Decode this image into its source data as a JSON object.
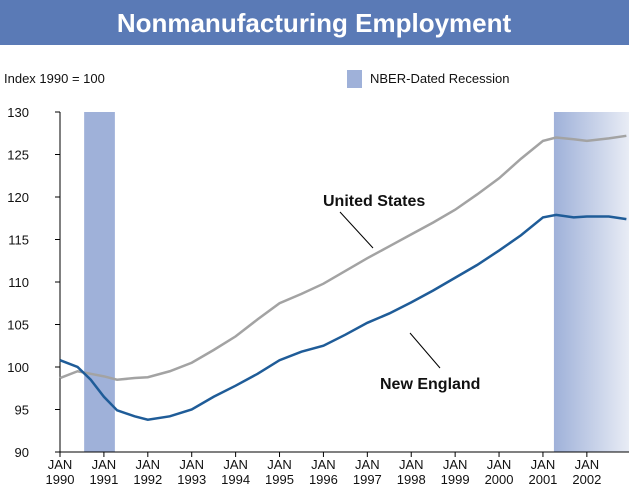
{
  "chart_data": {
    "type": "line",
    "title": "Nonmanufacturing Employment",
    "subtitle": "Index 1990 = 100",
    "recession_label": "NBER-Dated Recession",
    "recession_color": "#9fb1d9",
    "recessions": [
      [
        1990.55,
        1991.25
      ],
      [
        2001.25,
        2002.96
      ]
    ],
    "x": [
      1990,
      1990.4,
      1990.7,
      1991,
      1991.3,
      1991.7,
      1992,
      1992.5,
      1993,
      1993.5,
      1994,
      1994.5,
      1995,
      1995.5,
      1996,
      1996.5,
      1997,
      1997.5,
      1998,
      1998.5,
      1999,
      1999.5,
      2000,
      2000.5,
      2001,
      2001.3,
      2001.7,
      2002,
      2002.5,
      2002.9
    ],
    "series": [
      {
        "name": "United States",
        "color": "#a3a3a3",
        "values": [
          98.7,
          99.5,
          99.2,
          98.9,
          98.5,
          98.7,
          98.8,
          99.5,
          100.5,
          102,
          103.6,
          105.6,
          107.5,
          108.6,
          109.8,
          111.3,
          112.8,
          114.2,
          115.6,
          117,
          118.5,
          120.3,
          122.2,
          124.5,
          126.6,
          127.0,
          126.8,
          126.6,
          126.9,
          127.2
        ]
      },
      {
        "name": "New England",
        "color": "#1f5c98",
        "values": [
          100.8,
          100,
          98.5,
          96.5,
          94.9,
          94.2,
          93.8,
          94.2,
          95,
          96.5,
          97.8,
          99.2,
          100.8,
          101.8,
          102.5,
          103.8,
          105.2,
          106.3,
          107.6,
          109,
          110.5,
          112,
          113.7,
          115.5,
          117.6,
          117.9,
          117.6,
          117.7,
          117.7,
          117.4
        ]
      }
    ],
    "xlim": [
      1990,
      2002.96
    ],
    "ylim": [
      90,
      130
    ],
    "yticks": [
      90,
      95,
      100,
      105,
      110,
      115,
      120,
      125,
      130
    ],
    "xticks": [
      {
        "value": 1990,
        "label": "JAN 1990"
      },
      {
        "value": 1991,
        "label": "JAN 1991"
      },
      {
        "value": 1992,
        "label": "JAN 1992"
      },
      {
        "value": 1993,
        "label": "JAN 1993"
      },
      {
        "value": 1994,
        "label": "JAN 1994"
      },
      {
        "value": 1995,
        "label": "JAN 1995"
      },
      {
        "value": 1996,
        "label": "JAN 1996"
      },
      {
        "value": 1997,
        "label": "JAN 1997"
      },
      {
        "value": 1998,
        "label": "JAN 1998"
      },
      {
        "value": 1999,
        "label": "JAN 1999"
      },
      {
        "value": 2000,
        "label": "JAN 2000"
      },
      {
        "value": 2001,
        "label": "JAN 2001"
      },
      {
        "value": 2002,
        "label": "JAN 2002"
      }
    ]
  }
}
